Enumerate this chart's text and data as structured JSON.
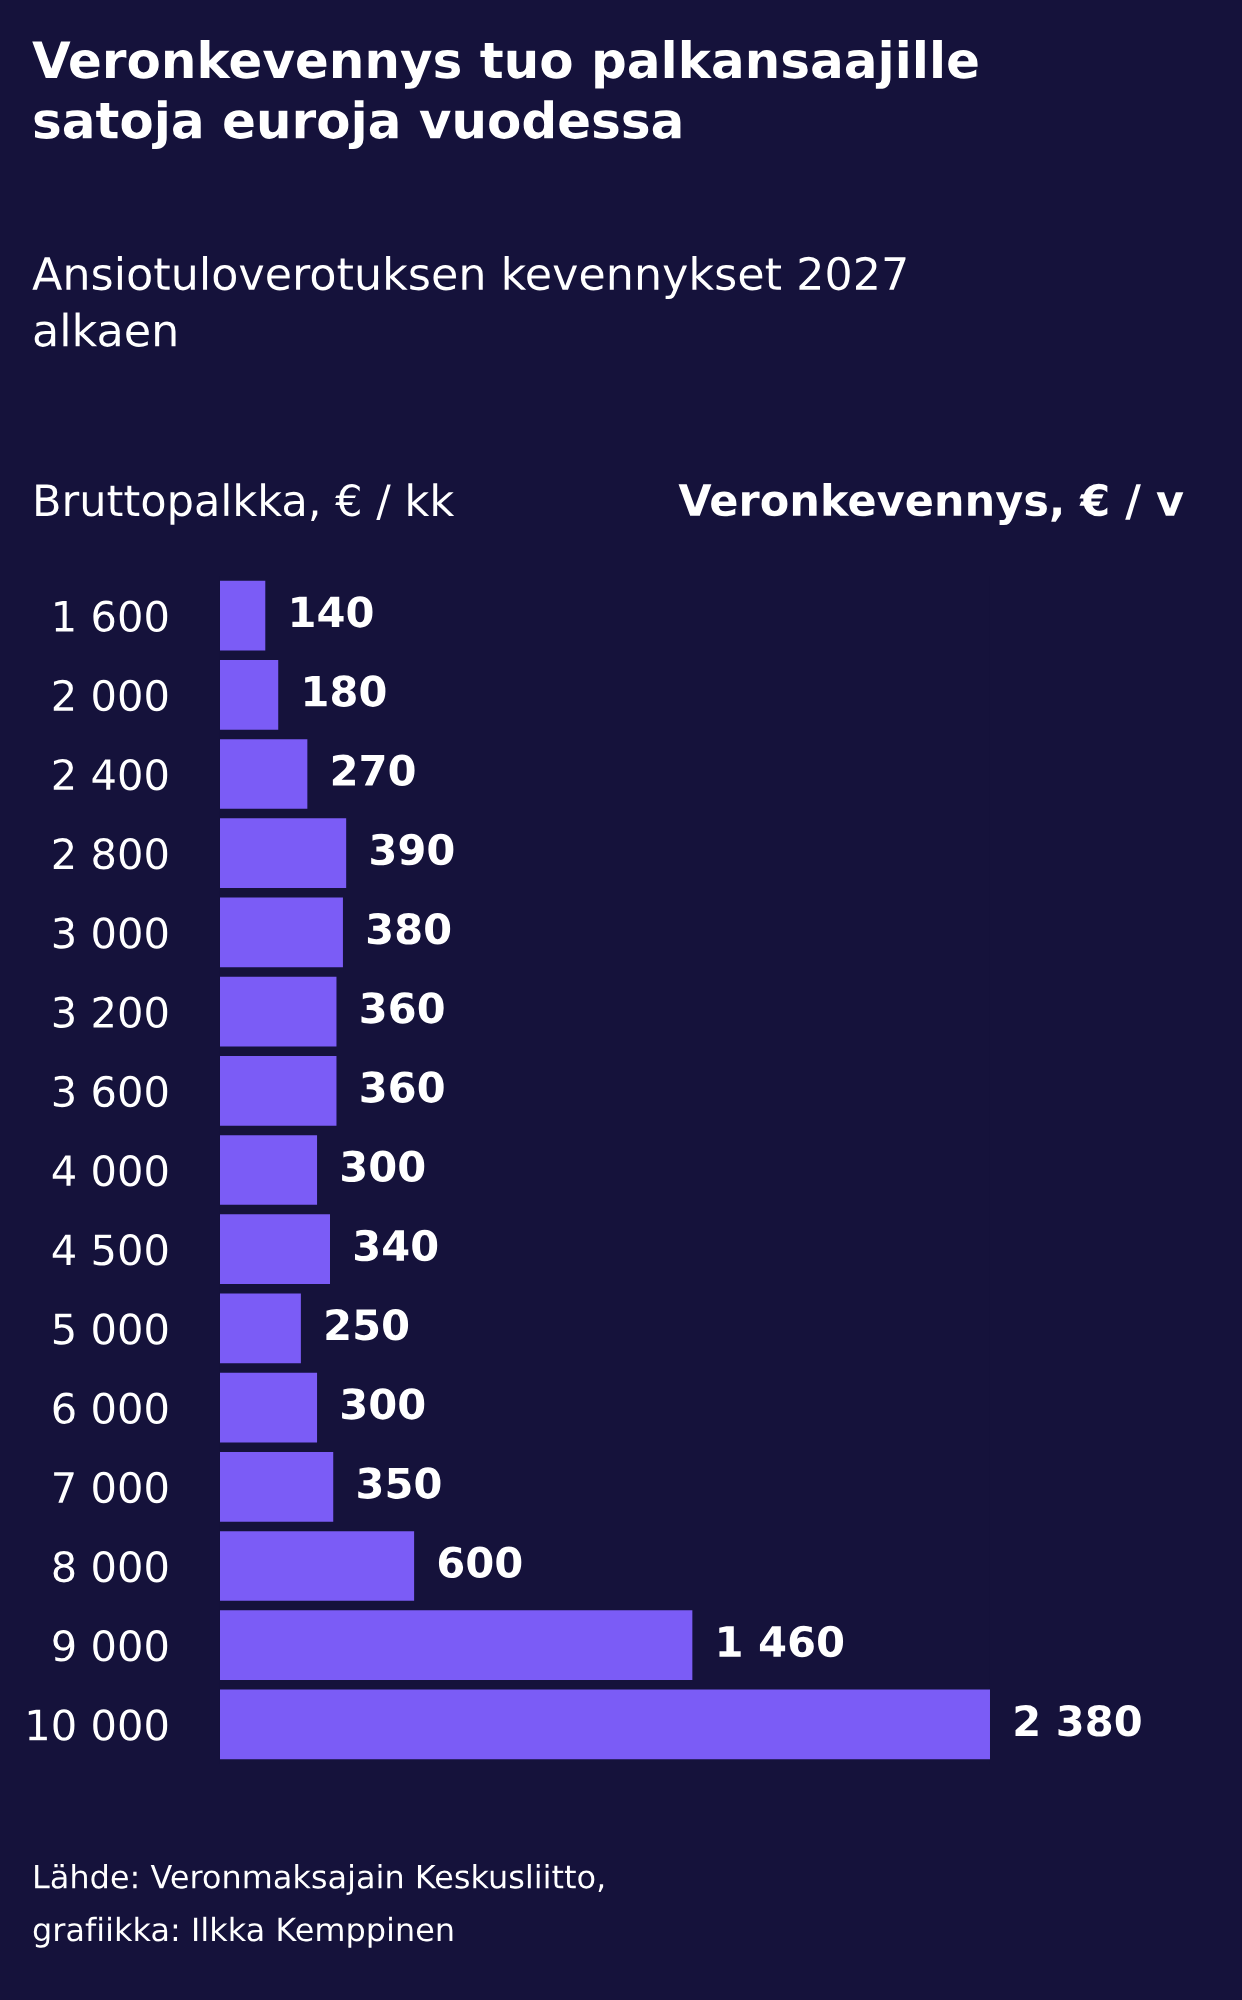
{
  "chart_data": {
    "type": "bar",
    "orientation": "horizontal",
    "title": "Veronkevennys tuo palkansaajille\nsatoja euroja vuodessa",
    "subtitle": "Ansiotuloverotuksen kevennykset 2027\nalkaen",
    "ylabel": "Bruttopalkka, € / kk",
    "xlabel": "Veronkevennys, € / v",
    "categories": [
      "1 600",
      "2 000",
      "2 400",
      "2 800",
      "3 000",
      "3 200",
      "3 600",
      "4 000",
      "4 500",
      "5 000",
      "6 000",
      "7 000",
      "8 000",
      "9 000",
      "10 000"
    ],
    "values": [
      140,
      180,
      270,
      390,
      380,
      360,
      360,
      300,
      340,
      250,
      300,
      350,
      600,
      1460,
      2380
    ],
    "value_labels": [
      "140",
      "180",
      "270",
      "390",
      "380",
      "360",
      "360",
      "300",
      "340",
      "250",
      "300",
      "350",
      "600",
      "1 460",
      "2 380"
    ],
    "color": "#7b5cf6",
    "annotations": [
      "Lähde: Veronmaksajain Keskusliitto,\ngrafiikka: Ilkka Kemppinen"
    ],
    "grid": false,
    "legend": false
  }
}
